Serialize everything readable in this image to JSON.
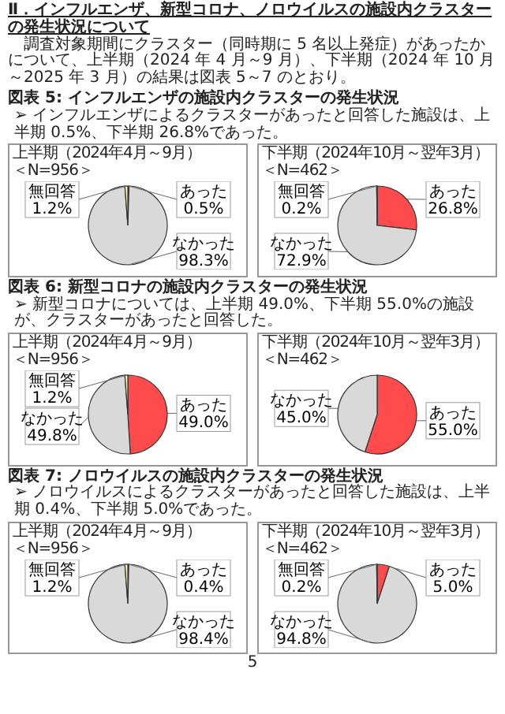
{
  "chart_data": [
    {
      "type": "pie",
      "title": "上半期（2024年4月～9月）",
      "subtitle": "＜N=956＞",
      "categories": [
        "あった",
        "なかった",
        "無回答"
      ],
      "values": [
        0.5,
        98.3,
        1.2
      ],
      "value_labels": [
        "0.5%",
        "98.3%",
        "1.2%"
      ],
      "colors": [
        "#ff4b4b",
        "#d9d9d9",
        "#fff2a8"
      ],
      "annotations": [
        "Ⅱ．インフルエンザ、新型コロナ、ノロウイルスの施設内クラスターの発生状況について",
        "調査対象期間にクラスター（同時期に 5 名以上発症）があったかについて、上半期（2024 年 4 月～9 月）、下半期（2024 年 10 月～2025 年 3 月）の結果は図表 5～7 のとおり。",
        "図表 5: インフルエンザの施設内クラスターの発生状況",
        "➢ インフルエンザによるクラスターがあったと回答した施設は、上半期 0.5%、下半期 26.8%であった。"
      ]
    },
    {
      "type": "pie",
      "title": "下半期（2024年10月～翌年3月）",
      "subtitle": "＜N=462＞",
      "categories": [
        "あった",
        "なかった",
        "無回答"
      ],
      "values": [
        26.8,
        72.9,
        0.2
      ],
      "value_labels": [
        "26.8%",
        "72.9%",
        "0.2%"
      ],
      "colors": [
        "#ff4b4b",
        "#d9d9d9",
        "#fff2a8"
      ]
    },
    {
      "type": "pie",
      "title": "上半期（2024年4月～9月）",
      "subtitle": "＜N=956＞",
      "categories": [
        "あった",
        "なかった",
        "無回答"
      ],
      "values": [
        49.0,
        49.8,
        1.2
      ],
      "value_labels": [
        "49.0%",
        "49.8%",
        "1.2%"
      ],
      "colors": [
        "#ff4b4b",
        "#d9d9d9",
        "#fff2a8"
      ],
      "annotations": [
        "図表 6: 新型コロナの施設内クラスターの発生状況",
        "➢ 新型コロナについては、上半期 49.0%、下半期 55.0%の施設が、クラスターがあったと回答した。"
      ]
    },
    {
      "type": "pie",
      "title": "下半期（2024年10月～翌年3月）",
      "subtitle": "＜N=462＞",
      "categories": [
        "あった",
        "なかった"
      ],
      "values": [
        55.0,
        45.0
      ],
      "value_labels": [
        "55.0%",
        "45.0%"
      ],
      "colors": [
        "#ff4b4b",
        "#d9d9d9"
      ]
    },
    {
      "type": "pie",
      "title": "上半期（2024年4月～9月）",
      "subtitle": "＜N=956＞",
      "categories": [
        "あった",
        "なかった",
        "無回答"
      ],
      "values": [
        0.4,
        98.4,
        1.2
      ],
      "value_labels": [
        "0.4%",
        "98.4%",
        "1.2%"
      ],
      "colors": [
        "#ff4b4b",
        "#d9d9d9",
        "#fff2a8"
      ],
      "annotations": [
        "図表 7: ノロウイルスの施設内クラスターの発生状況",
        "➢ ノロウイルスによるクラスターがあったと回答した施設は、上半期 0.4%、下半期 5.0%であった。"
      ]
    },
    {
      "type": "pie",
      "title": "下半期（2024年10月～翌年3月）",
      "subtitle": "＜N=462＞",
      "categories": [
        "あった",
        "なかった",
        "無回答"
      ],
      "values": [
        5.0,
        94.8,
        0.2
      ],
      "value_labels": [
        "5.0%",
        "94.8%",
        "0.2%"
      ],
      "colors": [
        "#ff4b4b",
        "#d9d9d9",
        "#fff2a8"
      ],
      "annotations": [
        "5"
      ]
    }
  ]
}
